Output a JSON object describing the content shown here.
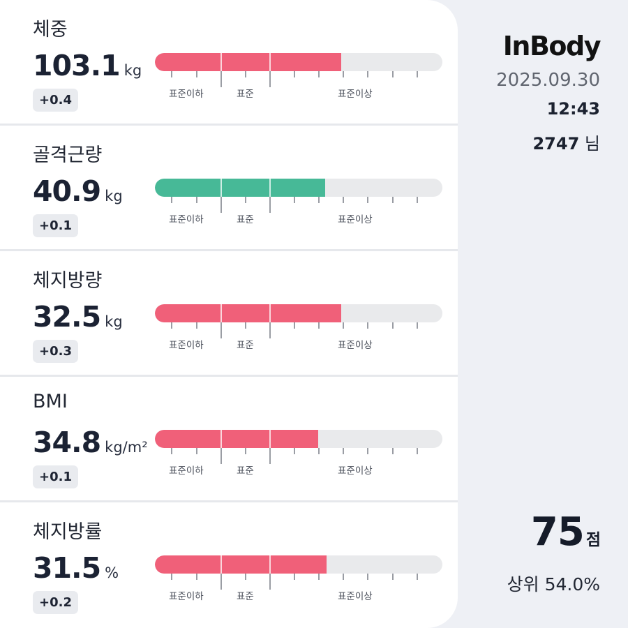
{
  "brand": {
    "logo": "InBody"
  },
  "record": {
    "date": "2025.09.30",
    "time": "12:43",
    "user_number": "2747",
    "user_suffix": "님"
  },
  "score": {
    "value": "75",
    "unit": "점",
    "rank": "상위 54.0%"
  },
  "range_labels": {
    "below": "표준이하",
    "standard": "표준",
    "above": "표준이상"
  },
  "colors": {
    "over": "#f06079",
    "normal": "#47b997",
    "track": "#e9eaec"
  },
  "metrics": [
    {
      "name": "체중",
      "value": "103.1",
      "unit": "kg",
      "delta": "+0.4",
      "fill_fraction": 0.648,
      "status": "over"
    },
    {
      "name": "골격근량",
      "value": "40.9",
      "unit": "kg",
      "delta": "+0.1",
      "fill_fraction": 0.592,
      "status": "normal"
    },
    {
      "name": "체지방량",
      "value": "32.5",
      "unit": "kg",
      "delta": "+0.3",
      "fill_fraction": 0.648,
      "status": "over"
    },
    {
      "name": "BMI",
      "value": "34.8",
      "unit": "kg/m²",
      "delta": "+0.1",
      "fill_fraction": 0.568,
      "status": "over"
    },
    {
      "name": "체지방률",
      "value": "31.5",
      "unit": "%",
      "delta": "+0.2",
      "fill_fraction": 0.597,
      "status": "over"
    }
  ]
}
